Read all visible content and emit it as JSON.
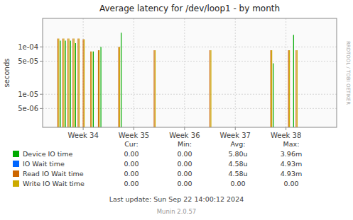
{
  "chart_data": {
    "type": "stem",
    "title": "Average latency for /dev/loop1 - by month",
    "y_label": "seconds",
    "log": "y",
    "grid": true,
    "xlim": [
      33.2,
      39.0
    ],
    "xticks": [
      {
        "value": 34,
        "label": "Week 34"
      },
      {
        "value": 35,
        "label": "Week 35"
      },
      {
        "value": 36,
        "label": "Week 36"
      },
      {
        "value": 37,
        "label": "Week 37"
      },
      {
        "value": 38,
        "label": "Week 38"
      }
    ],
    "ylim": [
      2e-06,
      0.0004
    ],
    "yticks": [
      {
        "value": 5e-06,
        "label": "5e-06"
      },
      {
        "value": 1e-05,
        "label": "1e-05"
      },
      {
        "value": 5e-05,
        "label": "5e-05"
      },
      {
        "value": 0.0001,
        "label": "1e-04"
      }
    ],
    "series": [
      {
        "name": "Device IO time",
        "color": "#00aa00",
        "x": [
          33.55,
          33.65,
          33.75,
          33.85,
          34.2,
          34.35,
          34.75,
          37.75,
          38.15
        ],
        "values": [
          0.000135,
          0.000135,
          0.000135,
          0.00012,
          8e-05,
          0.0001,
          0.0002,
          4.5e-05,
          0.00018
        ]
      },
      {
        "name": "IO Wait time",
        "color": "#0066ff",
        "x": [],
        "values": []
      },
      {
        "name": "Read IO Wait time",
        "color": "#cc6600",
        "x": [
          33.5,
          33.6,
          33.7,
          33.8,
          33.9,
          34.0,
          34.15,
          34.3,
          34.7,
          35.4,
          36.5,
          37.7,
          38.05,
          38.2
        ],
        "values": [
          0.00015,
          0.00015,
          0.00015,
          0.00015,
          0.00015,
          0.000145,
          8e-05,
          8.5e-05,
          0.0001,
          8.5e-05,
          8.5e-05,
          8.5e-05,
          8.5e-05,
          8.5e-05
        ]
      },
      {
        "name": "Write IO Wait time",
        "color": "#ccaa00",
        "x": [
          33.52,
          33.62,
          33.72,
          33.82,
          33.92,
          34.02,
          34.17,
          34.32,
          34.72,
          35.42,
          36.52,
          37.72,
          38.07,
          38.22
        ],
        "values": [
          0.00015,
          0.00015,
          0.00015,
          0.00015,
          0.00015,
          0.000145,
          8e-05,
          8.5e-05,
          0.0001,
          8.5e-05,
          8.5e-05,
          8.5e-05,
          8.5e-05,
          8.5e-05
        ]
      }
    ],
    "legend_table": {
      "columns": [
        "Cur:",
        "Min:",
        "Avg:",
        "Max:"
      ],
      "rows": [
        [
          "0.00",
          "0.00",
          "5.80u",
          "3.96m"
        ],
        [
          "0.00",
          "0.00",
          "4.58u",
          "4.93m"
        ],
        [
          "0.00",
          "0.00",
          "4.58u",
          "4.93m"
        ],
        [
          "0.00",
          "0.00",
          "0.00",
          "0.00"
        ]
      ]
    },
    "annotations": [
      "Last update: Sun Sep 22 14:00:12 2024",
      "Munin 2.0.57",
      "RRDTOOL / TOBI OETIKER"
    ]
  }
}
